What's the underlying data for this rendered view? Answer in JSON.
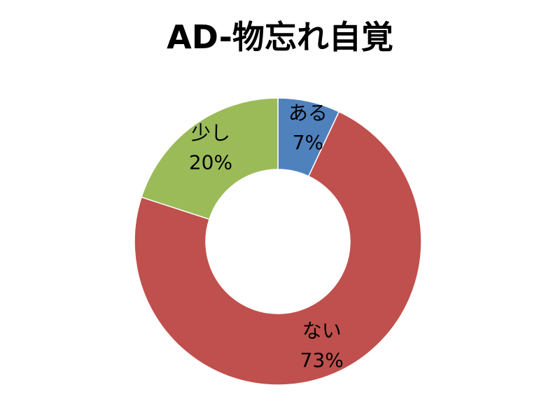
{
  "chart_data": {
    "type": "pie",
    "variant": "donut",
    "title": "AD-物忘れ自覚",
    "legend": "none",
    "slices": [
      {
        "name": "ある",
        "value": 7,
        "label": "7%",
        "color": "#4F81BD"
      },
      {
        "name": "ない",
        "value": 73,
        "label": "73%",
        "color": "#C0504D"
      },
      {
        "name": "少し",
        "value": 20,
        "label": "20%",
        "color": "#9BBB59"
      }
    ]
  }
}
